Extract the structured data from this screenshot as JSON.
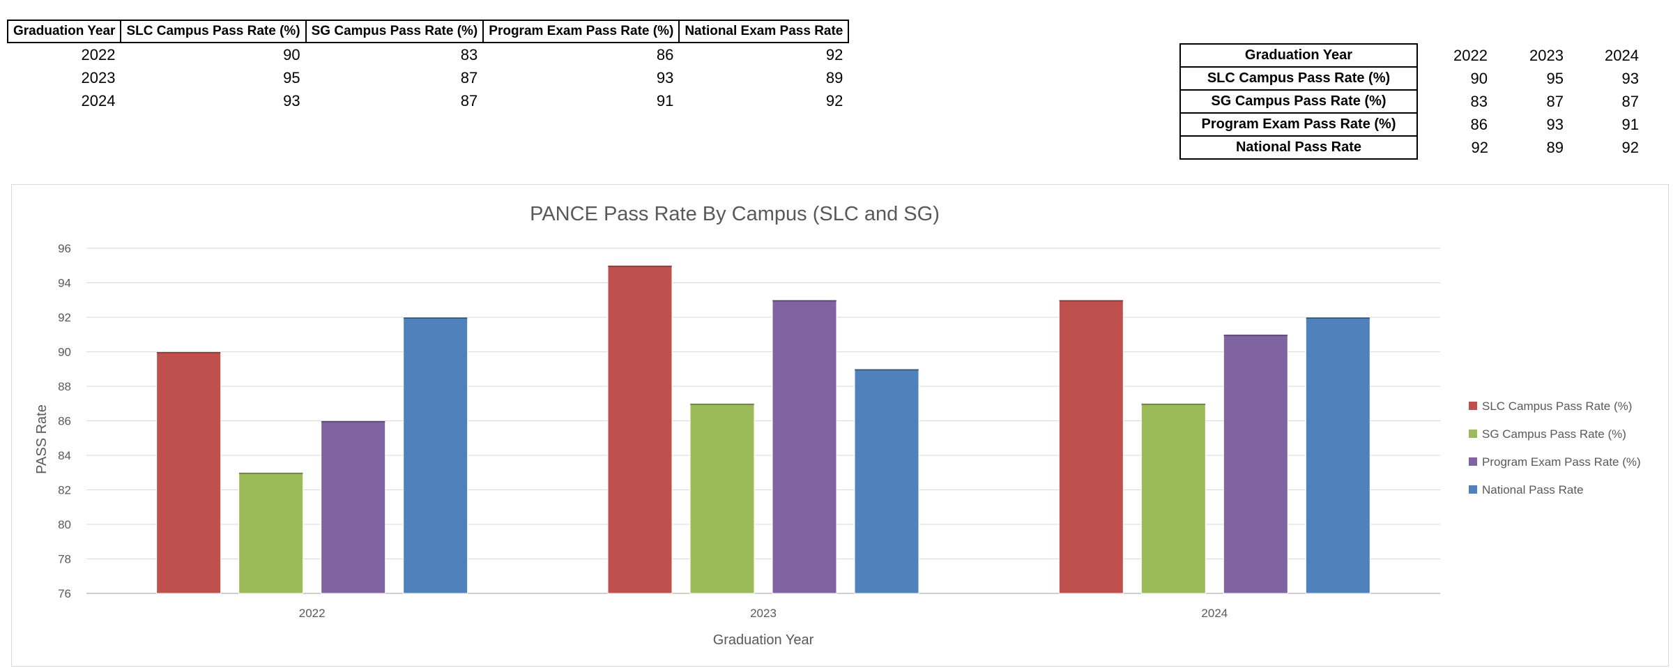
{
  "table_left": {
    "headers": [
      "Graduation Year",
      "SLC Campus Pass Rate (%)",
      "SG Campus Pass Rate (%)",
      "Program Exam Pass Rate (%)",
      "National Exam Pass Rate"
    ],
    "rows": [
      [
        "2022",
        "90",
        "83",
        "86",
        "92"
      ],
      [
        "2023",
        "95",
        "87",
        "93",
        "89"
      ],
      [
        "2024",
        "93",
        "87",
        "91",
        "92"
      ]
    ]
  },
  "table_right": {
    "rows": [
      {
        "label": "Graduation Year",
        "values": [
          "2022",
          "2023",
          "2024"
        ]
      },
      {
        "label": "SLC Campus Pass Rate (%)",
        "values": [
          "90",
          "95",
          "93"
        ]
      },
      {
        "label": "SG Campus Pass Rate (%)",
        "values": [
          "83",
          "87",
          "87"
        ]
      },
      {
        "label": "Program Exam Pass Rate (%)",
        "values": [
          "86",
          "93",
          "91"
        ]
      },
      {
        "label": "National Pass Rate",
        "values": [
          "92",
          "89",
          "92"
        ]
      }
    ]
  },
  "chart_data": {
    "type": "bar",
    "title": "PANCE Pass Rate By Campus (SLC and SG)",
    "xlabel": "Graduation Year",
    "ylabel": "PASS  Rate",
    "categories": [
      "2022",
      "2023",
      "2024"
    ],
    "ylim": [
      76,
      96
    ],
    "yticks": [
      76,
      78,
      80,
      82,
      84,
      86,
      88,
      90,
      92,
      94,
      96
    ],
    "grid": true,
    "legend_position": "right",
    "series": [
      {
        "name": "SLC Campus Pass Rate (%)",
        "values": [
          90,
          95,
          93
        ],
        "color": "#c0504d"
      },
      {
        "name": "SG Campus Pass Rate (%)",
        "values": [
          83,
          87,
          87
        ],
        "color": "#9bbb59"
      },
      {
        "name": "Program Exam Pass Rate (%)",
        "values": [
          86,
          93,
          91
        ],
        "color": "#8064a2"
      },
      {
        "name": "National Pass Rate",
        "values": [
          92,
          89,
          92
        ],
        "color": "#4f81bd"
      }
    ]
  }
}
